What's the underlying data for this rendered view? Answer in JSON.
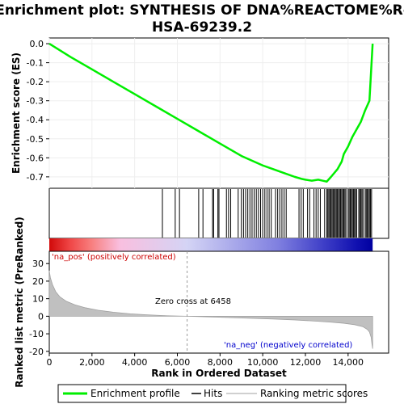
{
  "chart_data": {
    "type": "line",
    "title_line1": "Enrichment plot: SYNTHESIS OF DNA%REACTOME%R-",
    "title_line2": "HSA-69239.2",
    "es_panel": {
      "ylabel": "Enrichment score (ES)",
      "ylim": [
        -0.76,
        0.03
      ],
      "yticks": [
        "0.0",
        "-0.1",
        "-0.2",
        "-0.3",
        "-0.4",
        "-0.5",
        "-0.6",
        "-0.7"
      ],
      "ytick_values": [
        0.0,
        -0.1,
        -0.2,
        -0.3,
        -0.4,
        -0.5,
        -0.6,
        -0.7
      ],
      "series": [
        {
          "name": "Enrichment profile",
          "color": "#00ee00",
          "x": [
            0,
            1000,
            2000,
            3000,
            4000,
            5000,
            6000,
            7000,
            8000,
            9000,
            10000,
            10500,
            11000,
            11500,
            11800,
            12000,
            12300,
            12600,
            12800,
            13000,
            13200,
            13500,
            13700,
            13800,
            14000,
            14200,
            14400,
            14600,
            14800,
            15000,
            15050,
            15100,
            15150
          ],
          "y": [
            0.0,
            -0.07,
            -0.135,
            -0.2,
            -0.265,
            -0.33,
            -0.395,
            -0.46,
            -0.525,
            -0.59,
            -0.64,
            -0.66,
            -0.68,
            -0.7,
            -0.71,
            -0.715,
            -0.72,
            -0.715,
            -0.72,
            -0.725,
            -0.7,
            -0.66,
            -0.62,
            -0.58,
            -0.54,
            -0.49,
            -0.45,
            -0.41,
            -0.35,
            -0.3,
            -0.2,
            -0.1,
            0.0
          ]
        }
      ]
    },
    "hits_x": [
      5300,
      5900,
      6100,
      7000,
      7200,
      7650,
      7700,
      7900,
      7950,
      8300,
      8400,
      8500,
      8850,
      9000,
      9100,
      9200,
      9300,
      9400,
      9500,
      9600,
      9700,
      9800,
      9900,
      10000,
      10100,
      10200,
      10300,
      10400,
      10600,
      10700,
      10800,
      10900,
      11000,
      11100,
      11700,
      11800,
      11900,
      12100,
      12200,
      12400,
      12500,
      12600,
      12700,
      12900,
      13000,
      13050,
      13100,
      13150,
      13200,
      13250,
      13300,
      13350,
      13400,
      13450,
      13500,
      13550,
      13600,
      13650,
      13700,
      13750,
      13800,
      13850,
      13900,
      14000,
      14050,
      14100,
      14150,
      14200,
      14250,
      14300,
      14350,
      14400,
      14500,
      14550,
      14600,
      14650,
      14700,
      14800,
      14850,
      14900,
      14950,
      15000,
      15050,
      15100
    ],
    "metric_panel": {
      "ylabel": "Ranked list metric (PreRanked)",
      "ylim": [
        -21,
        37
      ],
      "yticks": [
        "30",
        "20",
        "10",
        "0",
        "-10",
        "-20"
      ],
      "ytick_values": [
        30,
        20,
        10,
        0,
        -10,
        -20
      ],
      "zero_cross": 6458,
      "zero_cross_label": "Zero cross at 6458",
      "pos_label": "'na_pos' (positively correlated)",
      "neg_label": "'na_neg' (negatively correlated)",
      "fill_color": "#c0c0c0",
      "x": [
        0,
        50,
        150,
        300,
        500,
        800,
        1200,
        1700,
        2300,
        3000,
        3800,
        4600,
        5500,
        6458,
        7500,
        8500,
        9500,
        10500,
        11500,
        12500,
        13200,
        13800,
        14300,
        14700,
        14900,
        15000,
        15080,
        15120,
        15150
      ],
      "y": [
        26,
        22,
        18,
        14,
        11,
        8.5,
        6.5,
        4.8,
        3.4,
        2.3,
        1.4,
        0.8,
        0.3,
        0.0,
        -0.4,
        -0.8,
        -1.2,
        -1.6,
        -2.1,
        -2.8,
        -3.4,
        -4.0,
        -4.8,
        -6.0,
        -7.5,
        -9.0,
        -12.0,
        -16.0,
        -18.5
      ]
    },
    "xlabel": "Rank in Ordered Dataset",
    "xlim": [
      0,
      15900
    ],
    "xticks": [
      "0",
      "2,000",
      "4,000",
      "6,000",
      "8,000",
      "10,000",
      "12,000",
      "14,000"
    ],
    "xtick_values": [
      0,
      2000,
      4000,
      6000,
      8000,
      10000,
      12000,
      14000
    ],
    "color_bar": {
      "stops": [
        {
          "x": 0,
          "color": "#d10a0a"
        },
        {
          "x": 1000,
          "color": "#f04848"
        },
        {
          "x": 2000,
          "color": "#f88080"
        },
        {
          "x": 3300,
          "color": "#f9bfdf"
        },
        {
          "x": 6458,
          "color": "#d4d4f5"
        },
        {
          "x": 10700,
          "color": "#8080e0"
        },
        {
          "x": 12800,
          "color": "#4040c8"
        },
        {
          "x": 14400,
          "color": "#1010b0"
        },
        {
          "x": 15150,
          "color": "#0000a0"
        }
      ]
    },
    "legend": {
      "placement": "bottom",
      "items": [
        {
          "label": "Enrichment profile",
          "color": "#00ee00"
        },
        {
          "label": "Hits",
          "color": "#000000"
        },
        {
          "label": "Ranking metric scores",
          "color": "#c0c0c0"
        }
      ]
    }
  }
}
